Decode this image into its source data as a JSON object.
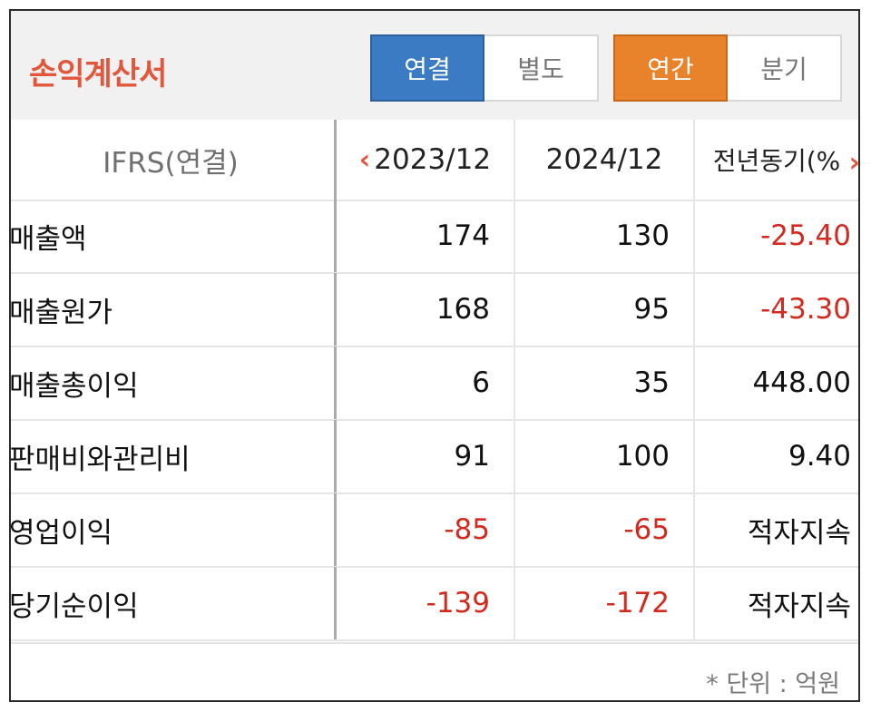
{
  "title": "손익계산서",
  "toggle_consolidation": {
    "consolidated": "연결",
    "separate": "별도"
  },
  "toggle_period": {
    "annual": "연간",
    "quarterly": "분기"
  },
  "colors": {
    "title": "#e2563c",
    "blue_active": "#3a7bc4",
    "orange_active": "#e8822b",
    "negative": "#d32a1f"
  },
  "table": {
    "header": {
      "label": "IFRS(연결)",
      "col1": "2023/12",
      "col2": "2024/12",
      "col3": "전년동기(%"
    },
    "rows": [
      {
        "label": "매출액",
        "v2023": "174",
        "v2024": "130",
        "yoy": "-25.40"
      },
      {
        "label": "매출원가",
        "v2023": "168",
        "v2024": "95",
        "yoy": "-43.30"
      },
      {
        "label": "매출총이익",
        "v2023": "6",
        "v2024": "35",
        "yoy": "448.00"
      },
      {
        "label": "판매비와관리비",
        "v2023": "91",
        "v2024": "100",
        "yoy": "9.40"
      },
      {
        "label": "영업이익",
        "v2023": "-85",
        "v2024": "-65",
        "yoy": "적자지속"
      },
      {
        "label": "당기순이익",
        "v2023": "-139",
        "v2024": "-172",
        "yoy": "적자지속"
      }
    ]
  },
  "footer": {
    "unit": "* 단위 : 억원"
  },
  "icons": {
    "prev": "chevron-left-icon",
    "next": "chevron-right-icon"
  }
}
